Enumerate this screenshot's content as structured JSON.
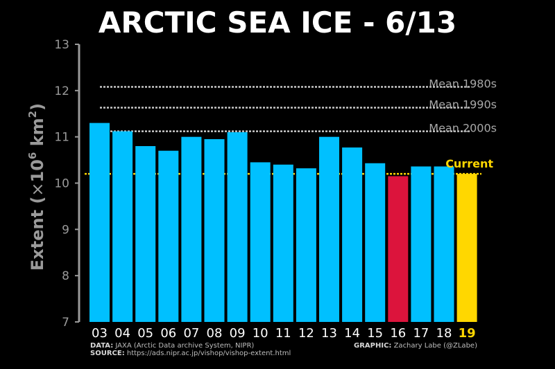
{
  "title": "ARCTIC SEA ICE - 6/13",
  "colors": {
    "background": "#000000",
    "bar_default": "#00c0ff",
    "bar_min": "#dc143c",
    "bar_current": "#ffd700",
    "mean_lines": "#c8c8c8",
    "axis": "#9a9a9a"
  },
  "chart_data": {
    "type": "bar",
    "title": "ARCTIC SEA ICE - 6/13",
    "xlabel": "",
    "ylabel": "Extent (×10⁶ km²)",
    "ylabel_parts": [
      "Extent (",
      "×",
      "10",
      "6",
      " km",
      "2",
      ")"
    ],
    "ylim": [
      7,
      13
    ],
    "yticks": [
      7,
      8,
      9,
      10,
      11,
      12,
      13
    ],
    "categories": [
      "03",
      "04",
      "05",
      "06",
      "07",
      "08",
      "09",
      "10",
      "11",
      "12",
      "13",
      "14",
      "15",
      "16",
      "17",
      "18",
      "19"
    ],
    "values": [
      11.3,
      11.12,
      10.8,
      10.7,
      11.0,
      10.95,
      11.1,
      10.45,
      10.4,
      10.32,
      11.0,
      10.77,
      10.43,
      10.15,
      10.36,
      10.36,
      10.2
    ],
    "highlight": {
      "min_category": "16",
      "current_category": "19"
    },
    "reference_lines": [
      {
        "label": "Mean 1980s",
        "value": 12.08
      },
      {
        "label": "Mean 1990s",
        "value": 11.63
      },
      {
        "label": "Mean 2000s",
        "value": 11.12
      },
      {
        "label": "Current",
        "value": 10.2
      }
    ]
  },
  "footer": {
    "data_label": "DATA:",
    "data_text": " JAXA (Arctic Data archive System, NIPR)",
    "source_label": "SOURCE:",
    "source_text": " https://ads.nipr.ac.jp/vishop/vishop-extent.html",
    "graphic_label": "GRAPHIC:",
    "graphic_text": " Zachary Labe (@ZLabe)"
  }
}
